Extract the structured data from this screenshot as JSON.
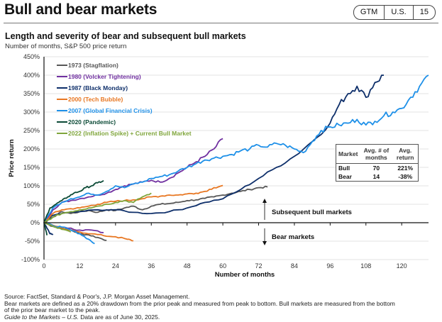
{
  "header": {
    "title": "Bull and bear markets",
    "badge": [
      "GTM",
      "U.S.",
      "15"
    ]
  },
  "footer": {
    "source": "Source: FactSet, Standard & Poor's, J.P. Morgan Asset Management.",
    "note": "Bear markets are defined as a 20% drawdown from the prior peak and measured from peak to bottom. Bull markets are measured from the bottom of the prior bear market to the peak.",
    "guide_italic": "Guide to the Markets – U.S.",
    "guide_rest": " Data are as of June 30, 2025."
  },
  "stats_table": {
    "headers": [
      "Market",
      "Avg. # of months",
      "Avg. return"
    ],
    "rows": [
      [
        "Bull",
        "70",
        "221%"
      ],
      [
        "Bear",
        "14",
        "-38%"
      ]
    ]
  },
  "chart_data": {
    "type": "line",
    "title": "Length and severity of bear and subsequent bull markets",
    "subtitle": "Number of months, S&P 500 price return",
    "xlabel": "Number of months",
    "ylabel": "Price return",
    "xlim": [
      0,
      129
    ],
    "ylim": [
      -100,
      450
    ],
    "xticks": [
      0,
      12,
      24,
      36,
      48,
      60,
      72,
      84,
      96,
      108,
      120
    ],
    "yticks": [
      -100,
      -50,
      0,
      50,
      100,
      150,
      200,
      250,
      300,
      350,
      400,
      450
    ],
    "ytick_labels": [
      "-100%",
      "-50%",
      "0%",
      "50%",
      "100%",
      "150%",
      "200%",
      "250%",
      "300%",
      "350%",
      "400%",
      "450%"
    ],
    "grid": "horizontal",
    "legend": "top-left",
    "annotations": [
      "Subsequent bull markets",
      "Bear markets"
    ],
    "series": [
      {
        "name": "1973 (Stagflation)",
        "color": "#575757",
        "bear": [
          [
            0,
            0
          ],
          [
            3,
            -10
          ],
          [
            6,
            -15
          ],
          [
            9,
            -20
          ],
          [
            12,
            -30
          ],
          [
            15,
            -33
          ],
          [
            18,
            -40
          ],
          [
            21,
            -48
          ]
        ],
        "bull": [
          [
            0,
            0
          ],
          [
            3,
            15
          ],
          [
            6,
            30
          ],
          [
            9,
            25
          ],
          [
            12,
            30
          ],
          [
            15,
            33
          ],
          [
            18,
            28
          ],
          [
            21,
            35
          ],
          [
            24,
            33
          ],
          [
            27,
            40
          ],
          [
            30,
            45
          ],
          [
            33,
            35
          ],
          [
            36,
            45
          ],
          [
            39,
            50
          ],
          [
            42,
            52
          ],
          [
            45,
            55
          ],
          [
            48,
            60
          ],
          [
            51,
            62
          ],
          [
            54,
            66
          ],
          [
            57,
            70
          ],
          [
            60,
            75
          ],
          [
            63,
            80
          ],
          [
            66,
            85
          ],
          [
            69,
            90
          ],
          [
            72,
            95
          ],
          [
            75,
            97
          ]
        ]
      },
      {
        "name": "1980 (Volcker Tightening)",
        "color": "#7030a0",
        "bear": [
          [
            0,
            0
          ],
          [
            4,
            -10
          ],
          [
            8,
            -15
          ],
          [
            12,
            -20
          ],
          [
            16,
            -20
          ],
          [
            20,
            -27
          ]
        ],
        "bull": [
          [
            0,
            0
          ],
          [
            3,
            35
          ],
          [
            6,
            55
          ],
          [
            9,
            60
          ],
          [
            12,
            65
          ],
          [
            15,
            70
          ],
          [
            18,
            75
          ],
          [
            21,
            80
          ],
          [
            24,
            90
          ],
          [
            27,
            100
          ],
          [
            30,
            105
          ],
          [
            33,
            110
          ],
          [
            36,
            115
          ],
          [
            39,
            110
          ],
          [
            42,
            120
          ],
          [
            45,
            135
          ],
          [
            48,
            150
          ],
          [
            51,
            165
          ],
          [
            54,
            180
          ],
          [
            57,
            200
          ],
          [
            60,
            228
          ]
        ]
      },
      {
        "name": "1987 (Black Monday)",
        "color": "#0e2f6a",
        "bear": [
          [
            0,
            0
          ],
          [
            1,
            -15
          ],
          [
            2,
            -30
          ],
          [
            3,
            -33
          ]
        ],
        "bull": [
          [
            0,
            0
          ],
          [
            3,
            20
          ],
          [
            6,
            25
          ],
          [
            12,
            30
          ],
          [
            18,
            35
          ],
          [
            24,
            35
          ],
          [
            30,
            28
          ],
          [
            36,
            25
          ],
          [
            42,
            30
          ],
          [
            48,
            40
          ],
          [
            54,
            55
          ],
          [
            60,
            65
          ],
          [
            66,
            90
          ],
          [
            72,
            120
          ],
          [
            78,
            150
          ],
          [
            84,
            180
          ],
          [
            90,
            220
          ],
          [
            96,
            270
          ],
          [
            99,
            320
          ],
          [
            102,
            350
          ],
          [
            105,
            370
          ],
          [
            108,
            340
          ],
          [
            111,
            380
          ],
          [
            114,
            400
          ]
        ]
      },
      {
        "name": "2000 (Tech Bubble)",
        "color": "#e87722",
        "bear": [
          [
            0,
            0
          ],
          [
            4,
            -10
          ],
          [
            8,
            -20
          ],
          [
            12,
            -25
          ],
          [
            16,
            -30
          ],
          [
            20,
            -35
          ],
          [
            24,
            -38
          ],
          [
            28,
            -45
          ],
          [
            30,
            -49
          ]
        ],
        "bull": [
          [
            0,
            0
          ],
          [
            3,
            25
          ],
          [
            6,
            35
          ],
          [
            9,
            38
          ],
          [
            12,
            40
          ],
          [
            15,
            45
          ],
          [
            18,
            50
          ],
          [
            21,
            55
          ],
          [
            24,
            58
          ],
          [
            27,
            60
          ],
          [
            30,
            62
          ],
          [
            33,
            65
          ],
          [
            36,
            70
          ],
          [
            39,
            72
          ],
          [
            42,
            75
          ],
          [
            45,
            75
          ],
          [
            48,
            78
          ],
          [
            51,
            80
          ],
          [
            54,
            85
          ],
          [
            57,
            95
          ],
          [
            60,
            101
          ]
        ]
      },
      {
        "name": "2007 (Global Financial Crisis)",
        "color": "#1e90e8",
        "bear": [
          [
            0,
            0
          ],
          [
            3,
            -8
          ],
          [
            6,
            -12
          ],
          [
            9,
            -20
          ],
          [
            12,
            -30
          ],
          [
            15,
            -45
          ],
          [
            17,
            -57
          ]
        ],
        "bull": [
          [
            0,
            0
          ],
          [
            3,
            40
          ],
          [
            6,
            55
          ],
          [
            9,
            65
          ],
          [
            12,
            70
          ],
          [
            15,
            80
          ],
          [
            18,
            75
          ],
          [
            21,
            85
          ],
          [
            24,
            100
          ],
          [
            27,
            95
          ],
          [
            30,
            105
          ],
          [
            33,
            110
          ],
          [
            36,
            120
          ],
          [
            39,
            125
          ],
          [
            42,
            130
          ],
          [
            45,
            140
          ],
          [
            48,
            150
          ],
          [
            51,
            160
          ],
          [
            54,
            170
          ],
          [
            57,
            175
          ],
          [
            60,
            180
          ],
          [
            63,
            185
          ],
          [
            66,
            195
          ],
          [
            69,
            200
          ],
          [
            72,
            210
          ],
          [
            75,
            205
          ],
          [
            78,
            215
          ],
          [
            81,
            210
          ],
          [
            84,
            200
          ],
          [
            87,
            190
          ],
          [
            90,
            220
          ],
          [
            93,
            250
          ],
          [
            96,
            260
          ],
          [
            99,
            265
          ],
          [
            102,
            270
          ],
          [
            105,
            280
          ],
          [
            108,
            265
          ],
          [
            111,
            275
          ],
          [
            114,
            290
          ],
          [
            117,
            300
          ],
          [
            120,
            310
          ],
          [
            123,
            340
          ],
          [
            126,
            370
          ],
          [
            129,
            400
          ]
        ]
      },
      {
        "name": "2020 (Pandemic)",
        "color": "#0b4a36",
        "bear": [
          [
            0,
            0
          ],
          [
            1,
            -34
          ]
        ],
        "bull": [
          [
            0,
            0
          ],
          [
            2,
            40
          ],
          [
            4,
            50
          ],
          [
            6,
            60
          ],
          [
            8,
            70
          ],
          [
            10,
            80
          ],
          [
            12,
            85
          ],
          [
            14,
            95
          ],
          [
            16,
            100
          ],
          [
            18,
            108
          ],
          [
            20,
            114
          ]
        ]
      },
      {
        "name": "2022 (Inflation Spike) + Current Bull Market",
        "color": "#7fa53b",
        "bear": [
          [
            0,
            0
          ],
          [
            3,
            -10
          ],
          [
            6,
            -18
          ],
          [
            9,
            -25
          ]
        ],
        "bull": [
          [
            0,
            0
          ],
          [
            3,
            15
          ],
          [
            6,
            25
          ],
          [
            9,
            30
          ],
          [
            12,
            35
          ],
          [
            15,
            40
          ],
          [
            18,
            45
          ],
          [
            21,
            50
          ],
          [
            24,
            55
          ],
          [
            27,
            60
          ],
          [
            30,
            55
          ],
          [
            33,
            70
          ],
          [
            36,
            80
          ]
        ]
      }
    ]
  }
}
